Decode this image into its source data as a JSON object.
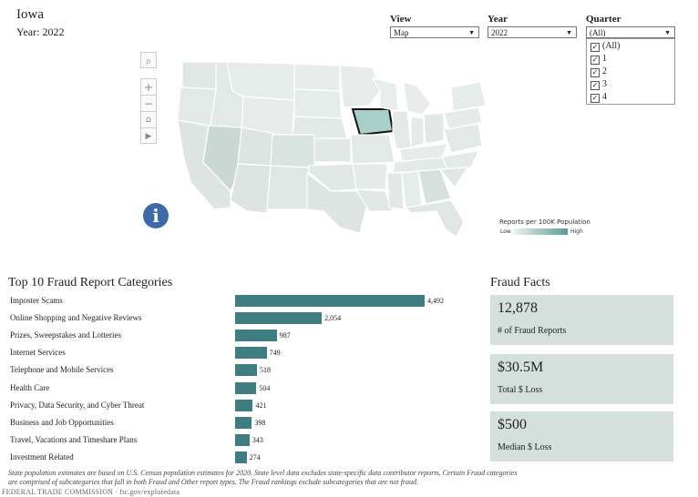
{
  "header": {
    "state": "Iowa",
    "year_label": "Year: 2022"
  },
  "controls": {
    "view": {
      "label": "View",
      "value": "Map"
    },
    "year": {
      "label": "Year",
      "value": "2022"
    },
    "quarter": {
      "label": "Quarter",
      "value": "(All)",
      "options": [
        "(All)",
        "1",
        "2",
        "3",
        "4"
      ]
    }
  },
  "map": {
    "legend_title": "Reports per 100K Population",
    "legend_low": "Low",
    "legend_high": "High",
    "colors": {
      "low": "#eef2f0",
      "high": "#5b9c95",
      "selected": "#a8cfc9"
    },
    "icons": [
      "search-icon",
      "zoom-in-icon",
      "zoom-out-icon",
      "home-icon",
      "play-icon",
      "info-icon"
    ]
  },
  "top10": {
    "title": "Top 10 Fraud Report Categories",
    "bar_color": "#3f7e80",
    "max": 4492,
    "items": [
      {
        "label": "Imposter Scams",
        "value": 4492,
        "display": "4,492"
      },
      {
        "label": "Online Shopping and Negative Reviews",
        "value": 2054,
        "display": "2,054"
      },
      {
        "label": "Prizes, Sweepstakes and Lotteries",
        "value": 987,
        "display": "987"
      },
      {
        "label": "Internet Services",
        "value": 749,
        "display": "749"
      },
      {
        "label": "Telephone and Mobile Services",
        "value": 518,
        "display": "518"
      },
      {
        "label": "Health Care",
        "value": 504,
        "display": "504"
      },
      {
        "label": "Privacy, Data Security, and Cyber Threat",
        "value": 421,
        "display": "421"
      },
      {
        "label": "Business and Job Opportunities",
        "value": 398,
        "display": "398"
      },
      {
        "label": "Travel, Vacations and Timeshare Plans",
        "value": 343,
        "display": "343"
      },
      {
        "label": "Investment Related",
        "value": 274,
        "display": "274"
      }
    ]
  },
  "facts": {
    "title": "Fraud Facts",
    "items": [
      {
        "value": "12,878",
        "label": "# of Fraud Reports"
      },
      {
        "value": "$30.5M",
        "label": "Total $ Loss"
      },
      {
        "value": "$500",
        "label": "Median $ Loss"
      }
    ]
  },
  "footnote": {
    "line1": "State population estimates are based on U.S. Census population estimates for 2020. State level data excludes state-specific data contributor reports. Certain Fraud categories",
    "line2": "are comprised of subcategories that fall in both Fraud and Other report types. The Fraud rankings exclude subcategories that are not fraud."
  },
  "source": "FEDERAL TRADE COMMISSION · ftc.gov/exploredata"
}
